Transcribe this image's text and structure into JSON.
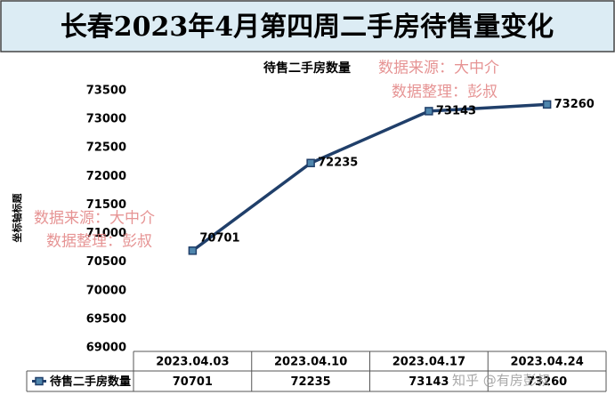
{
  "header": {
    "title": "长春2023年4月第四周二手房待售量变化"
  },
  "chart_data": {
    "type": "line",
    "title": "待售二手房数量",
    "y_label": "坐标轴标题",
    "categories": [
      "2023.04.03",
      "2023.04.10",
      "2023.04.17",
      "2023.04.24"
    ],
    "series": [
      {
        "name": "待售二手房数量",
        "color": "#203f6a",
        "marker_color": "#4f86ad",
        "values": [
          70701,
          72235,
          73143,
          73260
        ]
      }
    ],
    "ylim": [
      69000,
      73500
    ],
    "yticks": [
      69000,
      69500,
      70000,
      70500,
      71000,
      71500,
      72000,
      72500,
      73000,
      73500
    ],
    "grid": false,
    "data_table": true,
    "annotations": [
      "数据来源：大中介",
      "数据整理：彭叔",
      "数据来源：大中介",
      "数据整理：彭叔",
      "知乎 @有房彭叔"
    ]
  }
}
